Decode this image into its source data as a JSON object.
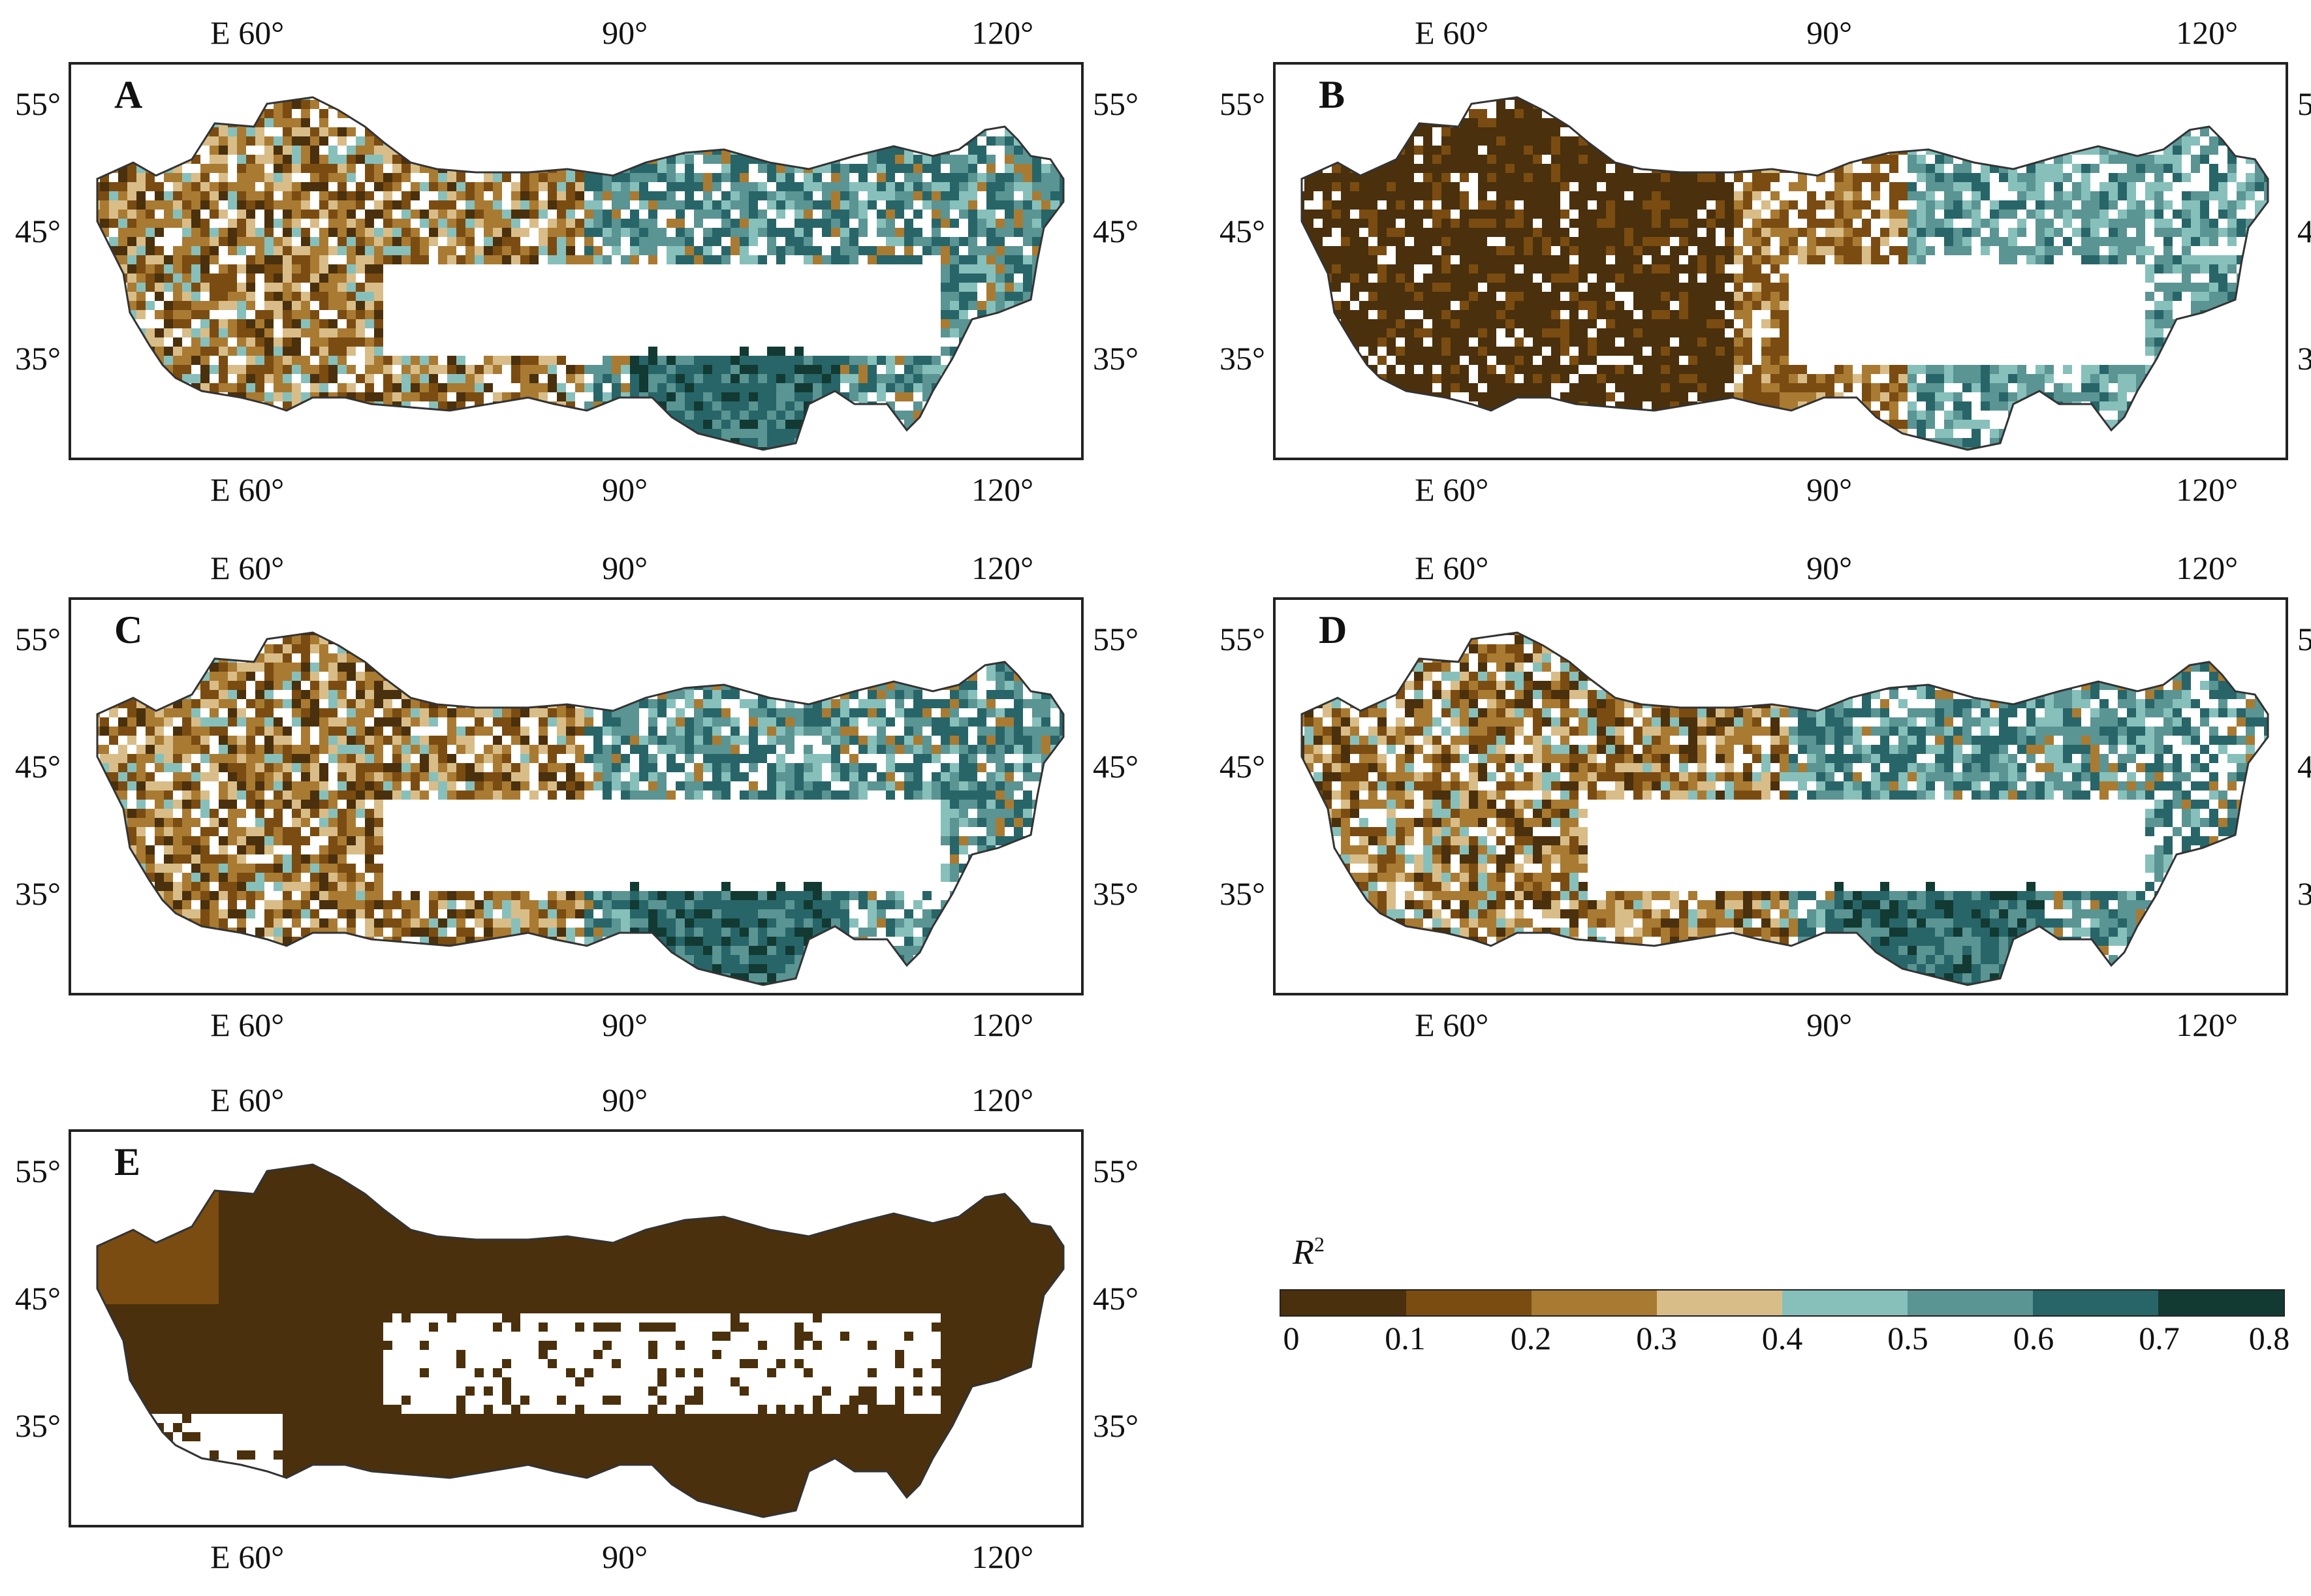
{
  "colors": {
    "c01": "#4a300c",
    "c02": "#7a4c12",
    "c03": "#a97a32",
    "c04": "#d9bd88",
    "c05": "#87c0bb",
    "c06": "#5a9493",
    "c07": "#286568",
    "c08": "#123a32",
    "boundary": "#333333"
  },
  "axes": {
    "lon_ticks": [
      "E 60°",
      "90°",
      "120°"
    ],
    "lat_ticks": [
      "55°",
      "45°",
      "35°"
    ]
  },
  "panels": [
    {
      "id": "A",
      "pattern": "mixed"
    },
    {
      "id": "B",
      "pattern": "brown-west"
    },
    {
      "id": "C",
      "pattern": "mixed"
    },
    {
      "id": "D",
      "pattern": "mixed"
    },
    {
      "id": "E",
      "pattern": "all-dark"
    }
  ],
  "legend": {
    "title": "R",
    "title_sup": "2",
    "labels": [
      "0",
      "0.1",
      "0.2",
      "0.3",
      "0.4",
      "0.5",
      "0.6",
      "0.7",
      "0.8"
    ]
  }
}
